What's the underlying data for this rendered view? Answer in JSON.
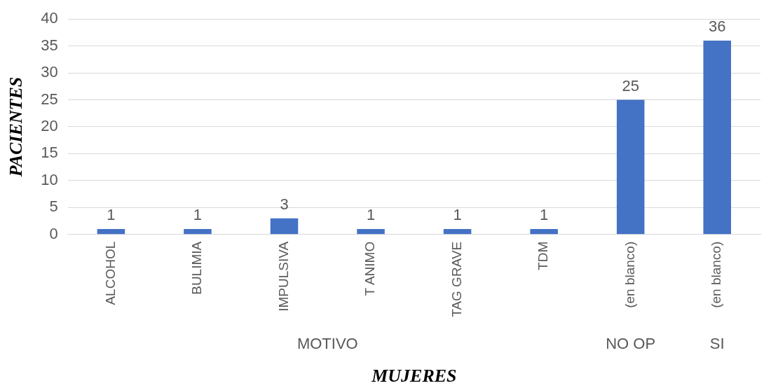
{
  "chart_data": {
    "type": "bar",
    "categories": [
      "ALCOHOL",
      "BULIMIA",
      "IMPULSIVA",
      "T ANIMO",
      "TAG GRAVE",
      "TDM",
      "(en blanco)",
      "(en blanco)"
    ],
    "values": [
      1,
      1,
      3,
      1,
      1,
      1,
      25,
      36
    ],
    "color": "#4472c4",
    "ylim": [
      0,
      40
    ],
    "yticks": [
      0,
      5,
      10,
      15,
      20,
      25,
      30,
      35,
      40
    ],
    "grid": "y",
    "data_labels": true,
    "legend": false,
    "xlabel": "MUJERES",
    "ylabel": "PACIENTES",
    "annotations": [
      "MOTIVO",
      "NO OP",
      "SI"
    ]
  }
}
